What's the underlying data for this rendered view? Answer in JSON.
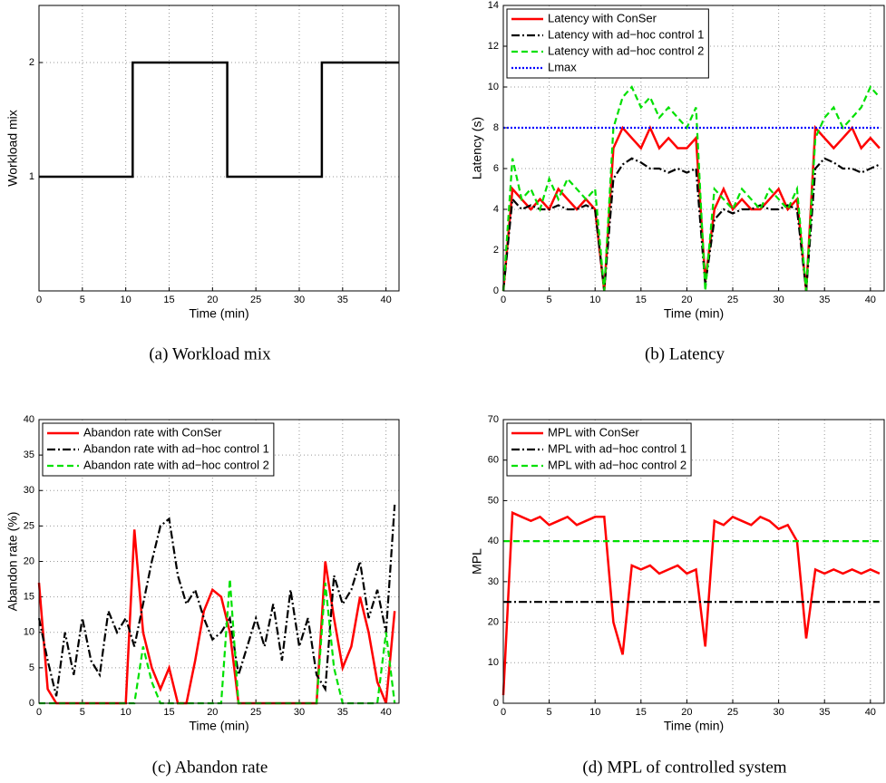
{
  "chart_data": [
    {
      "type": "line",
      "caption": "(a) Workload mix",
      "x_label": "Time (min)",
      "y_label": "Workload mix",
      "grid": true,
      "xlim": [
        0,
        41.5
      ],
      "xticks": [
        0,
        5,
        10,
        15,
        20,
        25,
        30,
        35,
        40
      ],
      "ylim": [
        0,
        2.5
      ],
      "yticks": [
        1,
        2
      ],
      "x": [
        0,
        10.8,
        10.8,
        21.7,
        21.7,
        32.6,
        32.6,
        41.5
      ],
      "series": [
        {
          "color": "#000000",
          "linestyle": "solid",
          "values": [
            1,
            1,
            2,
            2,
            1,
            1,
            2,
            2
          ]
        }
      ]
    },
    {
      "type": "line",
      "caption": "(b) Latency",
      "x_label": "Time (min)",
      "y_label": "Latency (s)",
      "grid": true,
      "legend": "upper-left",
      "xlim": [
        0,
        41.5
      ],
      "xticks": [
        0,
        5,
        10,
        15,
        20,
        25,
        30,
        35,
        40
      ],
      "ylim": [
        0,
        14
      ],
      "yticks": [
        0,
        2,
        4,
        6,
        8,
        10,
        12,
        14
      ],
      "x": [
        0,
        1,
        2,
        3,
        4,
        5,
        6,
        7,
        8,
        9,
        10,
        11,
        12,
        13,
        14,
        15,
        16,
        17,
        18,
        19,
        20,
        21,
        22,
        23,
        24,
        25,
        26,
        27,
        28,
        29,
        30,
        31,
        32,
        33,
        34,
        35,
        36,
        37,
        38,
        39,
        40,
        41
      ],
      "series": [
        {
          "name": "Latency with ConSer",
          "color": "#ff0000",
          "linestyle": "solid",
          "values": [
            0,
            5,
            4.5,
            4,
            4.5,
            4,
            5,
            4.5,
            4,
            4.5,
            4,
            0,
            7,
            8,
            7.5,
            7,
            8,
            7,
            7.5,
            7,
            7,
            7.5,
            0.5,
            4,
            5,
            4,
            4.5,
            4,
            4,
            4.5,
            5,
            4,
            4.5,
            0,
            8,
            7.5,
            7,
            7.5,
            8,
            7,
            7.5,
            7
          ]
        },
        {
          "name": "Latency with ad−hoc control 1",
          "color": "#000000",
          "linestyle": "dashdot",
          "values": [
            0,
            4.5,
            4,
            4.2,
            4,
            4,
            4.2,
            4,
            4,
            4.2,
            4,
            0,
            5.5,
            6.2,
            6.5,
            6.3,
            6,
            6,
            5.8,
            6,
            5.8,
            6,
            0.3,
            3.5,
            4,
            3.8,
            4,
            4,
            4.2,
            4,
            4,
            4.2,
            4,
            0,
            6,
            6.5,
            6.3,
            6,
            6,
            5.8,
            6,
            6.2
          ]
        },
        {
          "name": "Latency with ad−hoc control 2",
          "color": "#00e000",
          "linestyle": "dashed",
          "values": [
            0,
            6.5,
            4.5,
            5,
            4,
            5.5,
            4.5,
            5.5,
            5,
            4.5,
            5,
            0,
            8,
            9.5,
            10,
            9,
            9.5,
            8.5,
            9,
            8.5,
            8,
            9,
            0,
            5,
            4.5,
            4,
            5,
            4.5,
            4,
            5,
            4.5,
            4,
            5,
            0,
            7.5,
            8.5,
            9,
            8,
            8.5,
            9,
            10,
            9.5
          ]
        },
        {
          "name": "Lmax",
          "color": "#0000ff",
          "linestyle": "dotted",
          "values": [
            8,
            8,
            8,
            8,
            8,
            8,
            8,
            8,
            8,
            8,
            8,
            8,
            8,
            8,
            8,
            8,
            8,
            8,
            8,
            8,
            8,
            8,
            8,
            8,
            8,
            8,
            8,
            8,
            8,
            8,
            8,
            8,
            8,
            8,
            8,
            8,
            8,
            8,
            8,
            8,
            8,
            8
          ]
        }
      ]
    },
    {
      "type": "line",
      "caption": "(c) Abandon rate",
      "x_label": "Time (min)",
      "y_label": "Abandon rate (%)",
      "grid": true,
      "legend": "upper-left",
      "xlim": [
        0,
        41.5
      ],
      "xticks": [
        0,
        5,
        10,
        15,
        20,
        25,
        30,
        35,
        40
      ],
      "ylim": [
        0,
        40
      ],
      "yticks": [
        0,
        5,
        10,
        15,
        20,
        25,
        30,
        35,
        40
      ],
      "x": [
        0,
        1,
        2,
        3,
        4,
        5,
        6,
        7,
        8,
        9,
        10,
        11,
        12,
        13,
        14,
        15,
        16,
        17,
        18,
        19,
        20,
        21,
        22,
        23,
        24,
        25,
        26,
        27,
        28,
        29,
        30,
        31,
        32,
        33,
        34,
        35,
        36,
        37,
        38,
        39,
        40,
        41
      ],
      "series": [
        {
          "name": "Abandon rate with ConSer",
          "color": "#ff0000",
          "linestyle": "solid",
          "values": [
            17,
            2,
            0,
            0,
            0,
            0,
            0,
            0,
            0,
            0,
            0,
            24.5,
            10,
            5,
            2,
            5,
            0,
            0,
            6,
            13,
            16,
            15,
            10,
            0,
            0,
            0,
            0,
            0,
            0,
            0,
            0,
            0,
            0,
            20,
            12,
            5,
            8,
            15,
            10,
            3,
            0,
            13
          ]
        },
        {
          "name": "Abandon rate with ad−hoc control 1",
          "color": "#000000",
          "linestyle": "dashdot",
          "values": [
            12,
            6,
            1,
            10,
            4,
            12,
            6,
            4,
            13,
            10,
            12,
            8,
            14,
            20,
            25,
            26,
            18,
            14,
            16,
            12,
            9,
            10,
            12,
            4,
            8,
            12,
            8,
            14,
            6,
            16,
            8,
            12,
            4,
            2,
            18,
            14,
            16,
            20,
            12,
            16,
            10,
            28
          ]
        },
        {
          "name": "Abandon rate with ad−hoc control 2",
          "color": "#00e000",
          "linestyle": "dashed",
          "values": [
            0,
            0,
            0,
            0,
            0,
            0,
            0,
            0,
            0,
            0,
            0,
            0,
            8,
            3,
            0,
            0,
            0,
            0,
            0,
            0,
            0,
            0,
            17.5,
            0,
            0,
            0,
            0,
            0,
            0,
            0,
            0,
            0,
            0,
            17,
            5,
            0,
            0,
            0,
            0,
            0,
            10,
            0
          ]
        }
      ]
    },
    {
      "type": "line",
      "caption": "(d) MPL of controlled system",
      "x_label": "Time (min)",
      "y_label": "MPL",
      "grid": true,
      "legend": "upper-left",
      "xlim": [
        0,
        41.5
      ],
      "xticks": [
        0,
        5,
        10,
        15,
        20,
        25,
        30,
        35,
        40
      ],
      "ylim": [
        0,
        70
      ],
      "yticks": [
        0,
        10,
        20,
        30,
        40,
        50,
        60,
        70
      ],
      "x": [
        0,
        1,
        2,
        3,
        4,
        5,
        6,
        7,
        8,
        9,
        10,
        11,
        12,
        13,
        14,
        15,
        16,
        17,
        18,
        19,
        20,
        21,
        22,
        23,
        24,
        25,
        26,
        27,
        28,
        29,
        30,
        31,
        32,
        33,
        34,
        35,
        36,
        37,
        38,
        39,
        40,
        41
      ],
      "series": [
        {
          "name": "MPL with ConSer",
          "color": "#ff0000",
          "linestyle": "solid",
          "values": [
            2,
            47,
            46,
            45,
            46,
            44,
            45,
            46,
            44,
            45,
            46,
            46,
            20,
            12,
            34,
            33,
            34,
            32,
            33,
            34,
            32,
            33,
            14,
            45,
            44,
            46,
            45,
            44,
            46,
            45,
            43,
            44,
            40,
            16,
            33,
            32,
            33,
            32,
            33,
            32,
            33,
            32
          ]
        },
        {
          "name": "MPL with ad−hoc control 1",
          "color": "#000000",
          "linestyle": "dashdot",
          "values": [
            25,
            25,
            25,
            25,
            25,
            25,
            25,
            25,
            25,
            25,
            25,
            25,
            25,
            25,
            25,
            25,
            25,
            25,
            25,
            25,
            25,
            25,
            25,
            25,
            25,
            25,
            25,
            25,
            25,
            25,
            25,
            25,
            25,
            25,
            25,
            25,
            25,
            25,
            25,
            25,
            25,
            25
          ]
        },
        {
          "name": "MPL with ad−hoc control 2",
          "color": "#00e000",
          "linestyle": "dashed",
          "values": [
            40,
            40,
            40,
            40,
            40,
            40,
            40,
            40,
            40,
            40,
            40,
            40,
            40,
            40,
            40,
            40,
            40,
            40,
            40,
            40,
            40,
            40,
            40,
            40,
            40,
            40,
            40,
            40,
            40,
            40,
            40,
            40,
            40,
            40,
            40,
            40,
            40,
            40,
            40,
            40,
            40,
            40
          ]
        }
      ]
    }
  ]
}
